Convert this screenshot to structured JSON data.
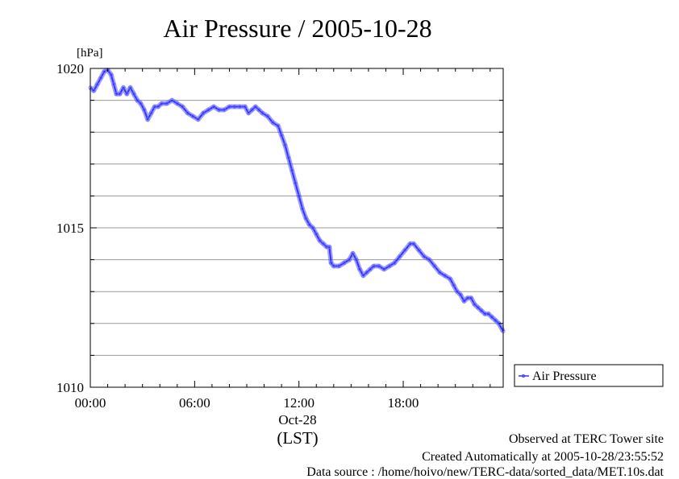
{
  "title": "Air Pressure / 2005-10-28",
  "footer": {
    "observed": "Observed at TERC Tower site",
    "created": "Created Automatically at 2005-10-28/23:55:52",
    "source": "Data source : /home/hoivo/new/TERC-data/sorted_data/MET.10s.dat"
  },
  "chart_data": {
    "type": "line",
    "title": "Air Pressure / 2005-10-28",
    "ylabel": "[hPa]",
    "xlabel": "(LST)",
    "x_date_label": "Oct-28",
    "ylim": [
      1010,
      1020
    ],
    "xlim": [
      "00:00",
      "23:59"
    ],
    "x_unit": "hours",
    "x_range_hours": [
      0,
      23.75
    ],
    "y_ticks": [
      "1010",
      "1015",
      "1020"
    ],
    "x_ticks": [
      "00:00",
      "06:00",
      "12:00",
      "18:00"
    ],
    "grid": true,
    "legend_position": "right",
    "series": [
      {
        "name": "Air Pressure",
        "color": "#3333ff",
        "marker": "circle",
        "points": [
          [
            0.0,
            1019.4
          ],
          [
            0.2,
            1019.3
          ],
          [
            0.4,
            1019.5
          ],
          [
            0.6,
            1019.7
          ],
          [
            0.8,
            1019.9
          ],
          [
            1.0,
            1019.95
          ],
          [
            1.2,
            1019.8
          ],
          [
            1.35,
            1019.5
          ],
          [
            1.5,
            1019.2
          ],
          [
            1.7,
            1019.2
          ],
          [
            1.9,
            1019.4
          ],
          [
            2.1,
            1019.2
          ],
          [
            2.3,
            1019.4
          ],
          [
            2.5,
            1019.2
          ],
          [
            2.7,
            1019.0
          ],
          [
            2.9,
            1018.9
          ],
          [
            3.1,
            1018.7
          ],
          [
            3.3,
            1018.4
          ],
          [
            3.5,
            1018.6
          ],
          [
            3.7,
            1018.8
          ],
          [
            3.9,
            1018.8
          ],
          [
            4.1,
            1018.9
          ],
          [
            4.4,
            1018.9
          ],
          [
            4.7,
            1019.0
          ],
          [
            5.0,
            1018.9
          ],
          [
            5.3,
            1018.8
          ],
          [
            5.6,
            1018.6
          ],
          [
            5.9,
            1018.5
          ],
          [
            6.2,
            1018.4
          ],
          [
            6.5,
            1018.6
          ],
          [
            6.8,
            1018.7
          ],
          [
            7.1,
            1018.8
          ],
          [
            7.4,
            1018.7
          ],
          [
            7.7,
            1018.7
          ],
          [
            8.0,
            1018.8
          ],
          [
            8.3,
            1018.8
          ],
          [
            8.6,
            1018.8
          ],
          [
            8.9,
            1018.8
          ],
          [
            9.1,
            1018.6
          ],
          [
            9.3,
            1018.7
          ],
          [
            9.5,
            1018.8
          ],
          [
            9.7,
            1018.7
          ],
          [
            9.9,
            1018.6
          ],
          [
            10.2,
            1018.5
          ],
          [
            10.5,
            1018.3
          ],
          [
            10.8,
            1018.2
          ],
          [
            11.0,
            1017.9
          ],
          [
            11.2,
            1017.6
          ],
          [
            11.4,
            1017.2
          ],
          [
            11.6,
            1016.8
          ],
          [
            11.8,
            1016.4
          ],
          [
            12.0,
            1016.0
          ],
          [
            12.2,
            1015.6
          ],
          [
            12.4,
            1015.3
          ],
          [
            12.6,
            1015.1
          ],
          [
            12.8,
            1015.0
          ],
          [
            13.0,
            1014.8
          ],
          [
            13.2,
            1014.6
          ],
          [
            13.4,
            1014.5
          ],
          [
            13.6,
            1014.4
          ],
          [
            13.75,
            1014.4
          ],
          [
            13.85,
            1013.9
          ],
          [
            14.0,
            1013.8
          ],
          [
            14.3,
            1013.8
          ],
          [
            14.6,
            1013.9
          ],
          [
            14.9,
            1014.0
          ],
          [
            15.1,
            1014.2
          ],
          [
            15.3,
            1014.0
          ],
          [
            15.5,
            1013.7
          ],
          [
            15.7,
            1013.5
          ],
          [
            15.9,
            1013.6
          ],
          [
            16.1,
            1013.7
          ],
          [
            16.3,
            1013.8
          ],
          [
            16.6,
            1013.8
          ],
          [
            16.9,
            1013.7
          ],
          [
            17.2,
            1013.8
          ],
          [
            17.5,
            1013.9
          ],
          [
            17.8,
            1014.1
          ],
          [
            18.1,
            1014.3
          ],
          [
            18.4,
            1014.5
          ],
          [
            18.6,
            1014.5
          ],
          [
            18.9,
            1014.3
          ],
          [
            19.2,
            1014.1
          ],
          [
            19.5,
            1014.0
          ],
          [
            19.8,
            1013.8
          ],
          [
            20.1,
            1013.6
          ],
          [
            20.4,
            1013.5
          ],
          [
            20.7,
            1013.4
          ],
          [
            20.9,
            1013.2
          ],
          [
            21.1,
            1013.0
          ],
          [
            21.3,
            1012.9
          ],
          [
            21.5,
            1012.7
          ],
          [
            21.7,
            1012.8
          ],
          [
            21.9,
            1012.8
          ],
          [
            22.1,
            1012.6
          ],
          [
            22.3,
            1012.5
          ],
          [
            22.5,
            1012.4
          ],
          [
            22.7,
            1012.3
          ],
          [
            22.9,
            1012.3
          ],
          [
            23.1,
            1012.2
          ],
          [
            23.3,
            1012.1
          ],
          [
            23.5,
            1012.0
          ],
          [
            23.75,
            1011.75
          ]
        ]
      }
    ]
  }
}
